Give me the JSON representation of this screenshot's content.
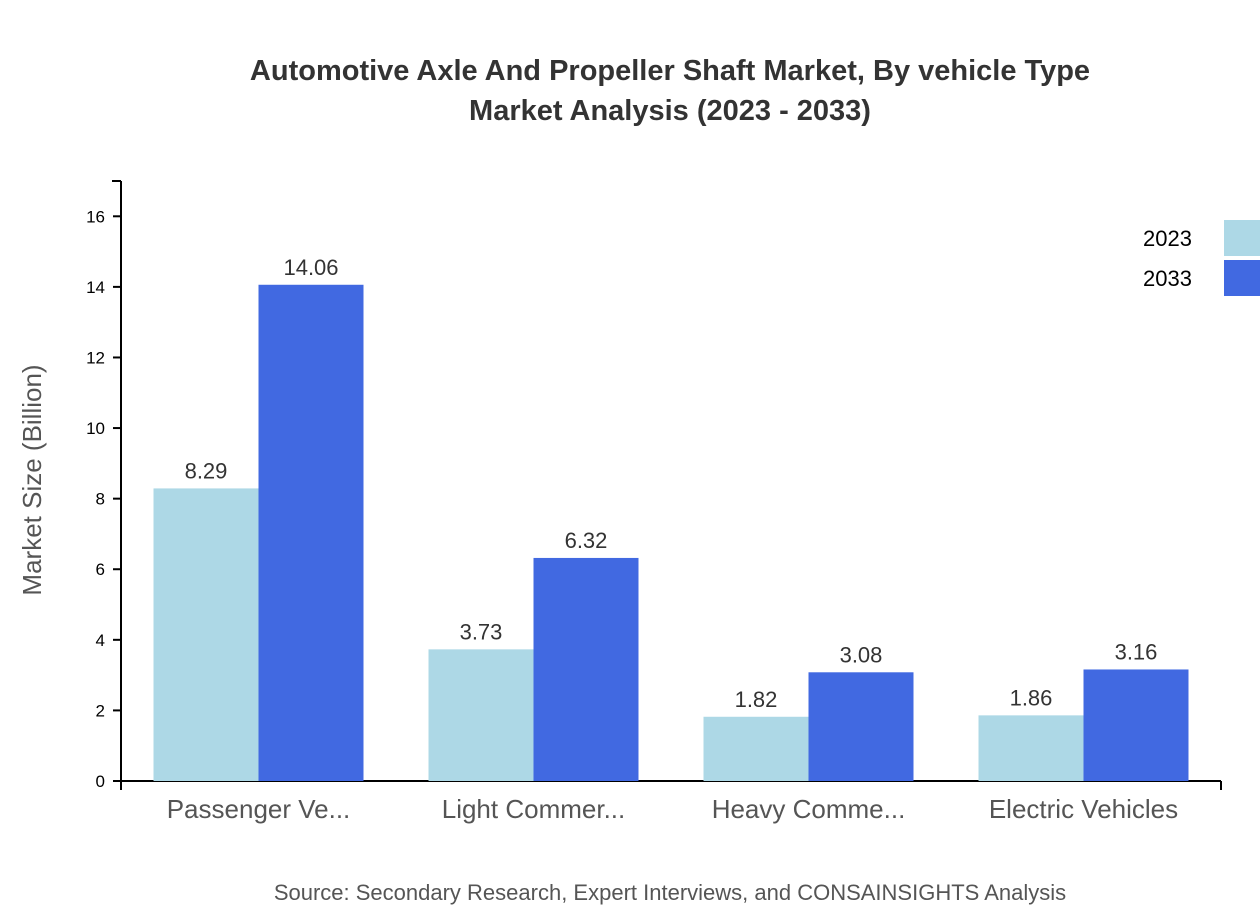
{
  "chart_data": {
    "type": "bar",
    "title": "Automotive Axle And Propeller Shaft Market, By vehicle Type",
    "subtitle": "Market Analysis (2023 - 2033)",
    "ylabel": "Market Size (Billion)",
    "xlabel": "",
    "ylim": [
      0,
      17
    ],
    "yticks": [
      0,
      2,
      4,
      6,
      8,
      10,
      12,
      14,
      16
    ],
    "categories": [
      "Passenger Ve...",
      "Light Commer...",
      "Heavy Comme...",
      "Electric Vehicles"
    ],
    "series": [
      {
        "name": "2023",
        "color": "#add8e6",
        "values": [
          8.29,
          3.73,
          1.82,
          1.86
        ]
      },
      {
        "name": "2033",
        "color": "#4169e1",
        "values": [
          14.06,
          6.32,
          3.08,
          3.16
        ]
      }
    ],
    "legend": "top-right",
    "grid": false,
    "source": "Source: Secondary Research, Expert Interviews, and CONSAINSIGHTS Analysis"
  }
}
